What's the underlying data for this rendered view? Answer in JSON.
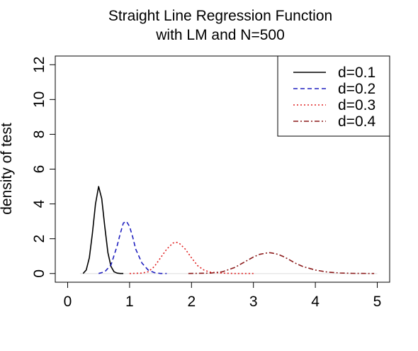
{
  "chart_data": {
    "type": "line",
    "title": [
      "Straight Line Regression Function",
      "with LM and N=500"
    ],
    "xlabel": "",
    "ylabel": "density of test",
    "xlim": [
      -0.2,
      5.2
    ],
    "ylim": [
      -0.5,
      12.5
    ],
    "xticks": [
      0,
      1,
      2,
      3,
      4,
      5
    ],
    "yticks": [
      0,
      2,
      4,
      6,
      8,
      10,
      12
    ],
    "grid": false,
    "legend_position": "top-right",
    "baseline": 0,
    "series": [
      {
        "name": "d=0.1",
        "color": "#000000",
        "dash": "solid",
        "x": [
          0.25,
          0.3,
          0.35,
          0.4,
          0.45,
          0.5,
          0.55,
          0.6,
          0.65,
          0.7,
          0.75,
          0.8,
          0.85,
          0.9
        ],
        "y": [
          0.0,
          0.2,
          0.9,
          2.3,
          4.0,
          5.0,
          4.3,
          2.7,
          1.2,
          0.4,
          0.1,
          0.02,
          0.0,
          0.0
        ]
      },
      {
        "name": "d=0.2",
        "color": "#1f1fbf",
        "dash": "6,4",
        "x": [
          0.5,
          0.6,
          0.7,
          0.8,
          0.85,
          0.9,
          0.95,
          1.0,
          1.05,
          1.1,
          1.2,
          1.3,
          1.4,
          1.5,
          1.6
        ],
        "y": [
          0.0,
          0.1,
          0.5,
          1.6,
          2.3,
          2.9,
          3.0,
          2.7,
          2.1,
          1.4,
          0.6,
          0.2,
          0.05,
          0.0,
          0.0
        ]
      },
      {
        "name": "d=0.3",
        "color": "#e02020",
        "dash": "2,3",
        "x": [
          1.0,
          1.2,
          1.3,
          1.4,
          1.5,
          1.6,
          1.7,
          1.75,
          1.8,
          1.9,
          2.0,
          2.1,
          2.2,
          2.3,
          2.5,
          2.7,
          3.0
        ],
        "y": [
          0.0,
          0.02,
          0.1,
          0.4,
          0.9,
          1.4,
          1.75,
          1.8,
          1.75,
          1.4,
          0.9,
          0.45,
          0.2,
          0.08,
          0.02,
          0.0,
          0.0
        ]
      },
      {
        "name": "d=0.4",
        "color": "#8b1a1a",
        "dash": "7,3,2,3",
        "x": [
          1.95,
          2.3,
          2.5,
          2.7,
          2.9,
          3.0,
          3.1,
          3.2,
          3.25,
          3.3,
          3.4,
          3.5,
          3.6,
          3.7,
          3.8,
          4.0,
          4.2,
          4.4,
          4.6,
          4.95
        ],
        "y": [
          0.0,
          0.02,
          0.1,
          0.35,
          0.75,
          0.95,
          1.1,
          1.17,
          1.2,
          1.18,
          1.1,
          0.95,
          0.75,
          0.55,
          0.4,
          0.2,
          0.08,
          0.03,
          0.01,
          0.0
        ]
      }
    ]
  }
}
